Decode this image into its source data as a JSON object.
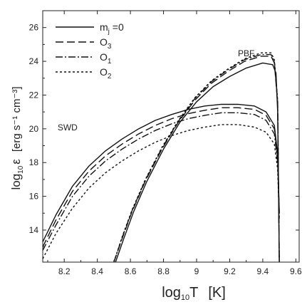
{
  "chart_data": {
    "type": "line",
    "x_axis": {
      "label_main": "log",
      "label_sub": "10",
      "label_var": "T",
      "label_unit": "[K]",
      "range": [
        8.07,
        9.62
      ],
      "ticks": [
        "8.2",
        "8.4",
        "8.6",
        "8.8",
        "9",
        "9.2",
        "9.4",
        "9.6"
      ],
      "tick_values": [
        8.2,
        8.4,
        8.6,
        8.8,
        9.0,
        9.2,
        9.4,
        9.6
      ]
    },
    "y_axis": {
      "label_main": "log",
      "label_sub": "10",
      "label_var": "ε",
      "label_unit": "[erg s⁻¹ cm⁻³]",
      "range": [
        12.1,
        27.0
      ],
      "ticks": [
        "14",
        "16",
        "18",
        "20",
        "22",
        "24",
        "26"
      ],
      "tick_values": [
        14,
        16,
        18,
        20,
        22,
        24,
        26
      ]
    },
    "legend": {
      "placement": "top-left",
      "entries": [
        {
          "label": "m",
          "sub": "j",
          "suffix": " =0",
          "style": "solid"
        },
        {
          "label": "O",
          "sub": "3",
          "suffix": "",
          "style": "long-dash"
        },
        {
          "label": "O",
          "sub": "1",
          "suffix": "",
          "style": "dash-dot"
        },
        {
          "label": "O",
          "sub": "2",
          "suffix": "",
          "style": "short-dash"
        }
      ]
    },
    "annotations": [
      {
        "text": "PBF",
        "x": 9.3,
        "y": 24.3
      },
      {
        "text": "SWD",
        "x": 8.22,
        "y": 19.9
      }
    ],
    "series": [
      {
        "group": "SWD",
        "style": "solid",
        "x": [
          8.07,
          8.15,
          8.25,
          8.35,
          8.45,
          8.55,
          8.65,
          8.75,
          8.85,
          8.95,
          9.05,
          9.15,
          9.25,
          9.35,
          9.42,
          9.47,
          9.49,
          9.5
        ],
        "y": [
          13.3,
          14.9,
          16.6,
          17.8,
          18.7,
          19.4,
          20.0,
          20.5,
          20.85,
          21.15,
          21.35,
          21.45,
          21.45,
          21.35,
          21.0,
          20.2,
          18.5,
          15.0
        ]
      },
      {
        "group": "SWD",
        "style": "long-dash",
        "x": [
          8.07,
          8.15,
          8.25,
          8.35,
          8.45,
          8.55,
          8.65,
          8.75,
          8.85,
          8.95,
          9.05,
          9.15,
          9.25,
          9.35,
          9.42,
          9.47,
          9.49,
          9.5
        ],
        "y": [
          13.0,
          14.6,
          16.3,
          17.5,
          18.4,
          19.1,
          19.7,
          20.2,
          20.6,
          20.9,
          21.1,
          21.25,
          21.25,
          21.15,
          20.8,
          20.0,
          18.3,
          14.9
        ]
      },
      {
        "group": "SWD",
        "style": "dash-dot",
        "x": [
          8.07,
          8.15,
          8.25,
          8.35,
          8.45,
          8.55,
          8.65,
          8.75,
          8.85,
          8.95,
          9.05,
          9.15,
          9.25,
          9.35,
          9.42,
          9.47,
          9.49,
          9.5
        ],
        "y": [
          12.8,
          14.3,
          16.0,
          17.2,
          18.1,
          18.8,
          19.4,
          19.9,
          20.3,
          20.6,
          20.8,
          20.95,
          20.95,
          20.85,
          20.5,
          19.7,
          18.0,
          14.8
        ]
      },
      {
        "group": "SWD",
        "style": "short-dash",
        "x": [
          8.07,
          8.15,
          8.25,
          8.35,
          8.45,
          8.55,
          8.65,
          8.75,
          8.85,
          8.95,
          9.05,
          9.15,
          9.25,
          9.35,
          9.42,
          9.47,
          9.49,
          9.5
        ],
        "y": [
          12.3,
          13.8,
          15.3,
          16.5,
          17.4,
          18.1,
          18.7,
          19.2,
          19.6,
          19.9,
          20.1,
          20.25,
          20.25,
          20.1,
          19.8,
          19.1,
          17.6,
          14.6
        ]
      },
      {
        "group": "PBF",
        "style": "solid",
        "x": [
          8.51,
          8.56,
          8.62,
          8.7,
          8.8,
          8.9,
          9.0,
          9.1,
          9.2,
          9.3,
          9.4,
          9.46,
          9.48,
          9.49,
          9.5
        ],
        "y": [
          12.1,
          13.5,
          15.1,
          16.9,
          18.8,
          20.4,
          21.6,
          22.5,
          23.1,
          23.6,
          23.9,
          23.8,
          23.3,
          21.0,
          12.1
        ]
      },
      {
        "group": "PBF",
        "style": "long-dash",
        "x": [
          8.5,
          8.55,
          8.61,
          8.69,
          8.79,
          8.89,
          8.99,
          9.09,
          9.19,
          9.29,
          9.39,
          9.45,
          9.47,
          9.49,
          9.5
        ],
        "y": [
          12.1,
          13.5,
          15.1,
          16.9,
          18.8,
          20.4,
          21.7,
          22.7,
          23.4,
          24.0,
          24.3,
          24.3,
          23.9,
          21.5,
          12.1
        ]
      },
      {
        "group": "PBF",
        "style": "dash-dot",
        "x": [
          8.5,
          8.55,
          8.61,
          8.69,
          8.79,
          8.89,
          8.99,
          9.09,
          9.19,
          9.29,
          9.39,
          9.45,
          9.47,
          9.49,
          9.5
        ],
        "y": [
          12.1,
          13.55,
          15.15,
          16.95,
          18.85,
          20.45,
          21.8,
          22.8,
          23.5,
          24.1,
          24.4,
          24.4,
          24.0,
          21.6,
          12.1
        ]
      },
      {
        "group": "PBF",
        "style": "short-dash",
        "x": [
          8.5,
          8.55,
          8.61,
          8.69,
          8.79,
          8.89,
          8.99,
          9.09,
          9.19,
          9.29,
          9.39,
          9.45,
          9.47,
          9.49,
          9.5
        ],
        "y": [
          12.1,
          13.6,
          15.2,
          17.0,
          18.9,
          20.5,
          21.85,
          22.85,
          23.55,
          24.15,
          24.5,
          24.5,
          24.1,
          21.7,
          12.1
        ]
      }
    ]
  }
}
